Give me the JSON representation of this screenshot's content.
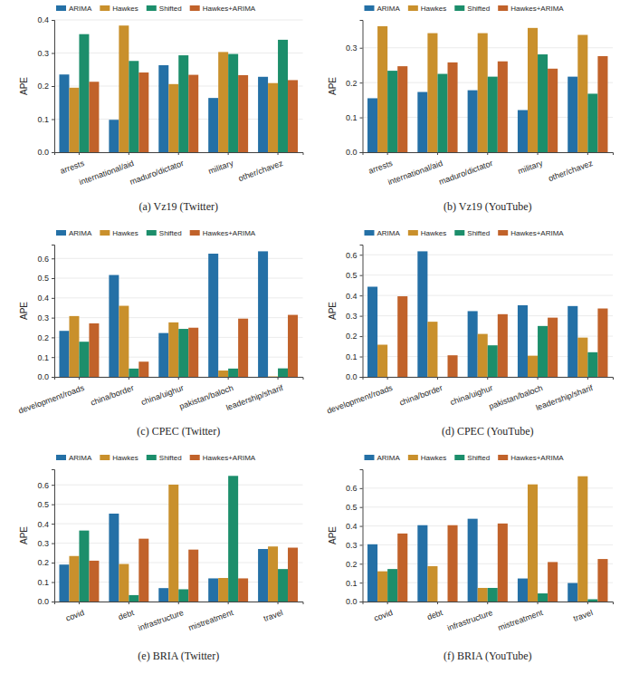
{
  "chart_data": [
    {
      "type": "bar",
      "title": "(a) Vz19 (Twitter)",
      "y_label": "APE",
      "categories": [
        "arrests",
        "international/aid",
        "maduro/dictator",
        "military",
        "other/chavez"
      ],
      "series": [
        {
          "name": "ARIMA",
          "color": "#2470a6",
          "values": [
            0.235,
            0.098,
            0.263,
            0.164,
            0.228
          ]
        },
        {
          "name": "Hawkes",
          "color": "#c9902c",
          "values": [
            0.195,
            0.383,
            0.206,
            0.303,
            0.209
          ]
        },
        {
          "name": "Shifted",
          "color": "#1c8e6b",
          "values": [
            0.357,
            0.276,
            0.293,
            0.297,
            0.34
          ]
        },
        {
          "name": "Hawkes+ARIMA",
          "color": "#c1622a",
          "values": [
            0.213,
            0.241,
            0.234,
            0.233,
            0.218
          ]
        }
      ],
      "ylim": [
        0,
        0.4
      ],
      "yticks": [
        {
          "value": 0,
          "label": "0.0"
        },
        0.1,
        0.2,
        0.3,
        0.4
      ],
      "grid": true,
      "legend": "top-left"
    },
    {
      "type": "bar",
      "title": "(b) Vz19 (YouTube)",
      "y_label": "APE",
      "categories": [
        "arrests",
        "international/aid",
        "maduro/dictator",
        "military",
        "other/chavez"
      ],
      "series": [
        {
          "name": "ARIMA",
          "color": "#2470a6",
          "values": [
            0.155,
            0.173,
            0.178,
            0.121,
            0.217
          ]
        },
        {
          "name": "Hawkes",
          "color": "#c9902c",
          "values": [
            0.362,
            0.342,
            0.342,
            0.357,
            0.337
          ]
        },
        {
          "name": "Shifted",
          "color": "#1c8e6b",
          "values": [
            0.234,
            0.225,
            0.217,
            0.281,
            0.168
          ]
        },
        {
          "name": "Hawkes+ARIMA",
          "color": "#c1622a",
          "values": [
            0.247,
            0.258,
            0.261,
            0.24,
            0.276
          ]
        }
      ],
      "ylim": [
        0,
        0.38
      ],
      "yticks": [
        {
          "value": 0,
          "label": "0.0"
        },
        0.1,
        0.2,
        0.3
      ],
      "grid": true,
      "legend": "top-left"
    },
    {
      "type": "bar",
      "title": "(c) CPEC (Twitter)",
      "y_label": "APE",
      "categories": [
        "development/roads",
        "china/border",
        "china/uighur",
        "pakistan/baloch",
        "leadership/sharif"
      ],
      "series": [
        {
          "name": "ARIMA",
          "color": "#2470a6",
          "values": [
            0.233,
            0.516,
            0.222,
            0.624,
            0.636
          ]
        },
        {
          "name": "Hawkes",
          "color": "#c9902c",
          "values": [
            0.308,
            0.36,
            0.276,
            0.032,
            0.002
          ]
        },
        {
          "name": "Shifted",
          "color": "#1c8e6b",
          "values": [
            0.178,
            0.042,
            0.243,
            0.042,
            0.043
          ]
        },
        {
          "name": "Hawkes+ARIMA",
          "color": "#c1622a",
          "values": [
            0.271,
            0.077,
            0.249,
            0.295,
            0.314
          ]
        }
      ],
      "ylim": [
        0,
        0.67
      ],
      "yticks": [
        {
          "value": 0,
          "label": "0.0"
        },
        0.1,
        0.2,
        0.3,
        0.4,
        0.5,
        0.6
      ],
      "grid": true,
      "legend": "top-left"
    },
    {
      "type": "bar",
      "title": "(d) CPEC (YouTube)",
      "y_label": "APE",
      "categories": [
        "development/roads",
        "china/border",
        "china/uighur",
        "pakistan/baloch",
        "leadership/sharif"
      ],
      "series": [
        {
          "name": "ARIMA",
          "color": "#2470a6",
          "values": [
            0.443,
            0.617,
            0.323,
            0.352,
            0.348
          ]
        },
        {
          "name": "Hawkes",
          "color": "#c9902c",
          "values": [
            0.158,
            0.271,
            0.211,
            0.104,
            0.193
          ]
        },
        {
          "name": "Shifted",
          "color": "#1c8e6b",
          "values": [
            0,
            0,
            0.155,
            0.25,
            0.121
          ]
        },
        {
          "name": "Hawkes+ARIMA",
          "color": "#c1622a",
          "values": [
            0.396,
            0.106,
            0.308,
            0.291,
            0.336
          ]
        }
      ],
      "ylim": [
        0,
        0.65
      ],
      "yticks": [
        {
          "value": 0,
          "label": "0.0"
        },
        0.1,
        0.2,
        0.3,
        0.4,
        0.5,
        0.6
      ],
      "grid": true,
      "legend": "top-left"
    },
    {
      "type": "bar",
      "title": "(e) BRIA (Twitter)",
      "y_label": "APE",
      "categories": [
        "covid",
        "debt",
        "infrastructure",
        "mistreatment",
        "travel"
      ],
      "series": [
        {
          "name": "ARIMA",
          "color": "#2470a6",
          "values": [
            0.19,
            0.452,
            0.069,
            0.119,
            0.27
          ]
        },
        {
          "name": "Hawkes",
          "color": "#c9902c",
          "values": [
            0.234,
            0.193,
            0.601,
            0.121,
            0.283
          ]
        },
        {
          "name": "Shifted",
          "color": "#1c8e6b",
          "values": [
            0.365,
            0.033,
            0.063,
            0.646,
            0.167
          ]
        },
        {
          "name": "Hawkes+ARIMA",
          "color": "#c1622a",
          "values": [
            0.21,
            0.323,
            0.267,
            0.119,
            0.277
          ]
        }
      ],
      "ylim": [
        0,
        0.68
      ],
      "yticks": [
        {
          "value": 0,
          "label": "0.0"
        },
        0.1,
        0.2,
        0.3,
        0.4,
        0.5,
        0.6
      ],
      "grid": true,
      "legend": "top-left"
    },
    {
      "type": "bar",
      "title": "(f) BRIA (YouTube)",
      "y_label": "APE",
      "categories": [
        "covid",
        "debt",
        "infrastructure",
        "mistreatment",
        "travel"
      ],
      "series": [
        {
          "name": "ARIMA",
          "color": "#2470a6",
          "values": [
            0.303,
            0.404,
            0.438,
            0.122,
            0.098
          ]
        },
        {
          "name": "Hawkes",
          "color": "#c9902c",
          "values": [
            0.16,
            0.187,
            0.072,
            0.62,
            0.663
          ]
        },
        {
          "name": "Shifted",
          "color": "#1c8e6b",
          "values": [
            0.172,
            0,
            0.072,
            0.043,
            0.012
          ]
        },
        {
          "name": "Hawkes+ARIMA",
          "color": "#c1622a",
          "values": [
            0.36,
            0.404,
            0.413,
            0.209,
            0.225
          ]
        }
      ],
      "ylim": [
        0,
        0.7
      ],
      "yticks": [
        {
          "value": 0,
          "label": "0.0"
        },
        0.1,
        0.2,
        0.3,
        0.4,
        0.5,
        0.6
      ],
      "grid": true,
      "legend": "top-left"
    }
  ]
}
